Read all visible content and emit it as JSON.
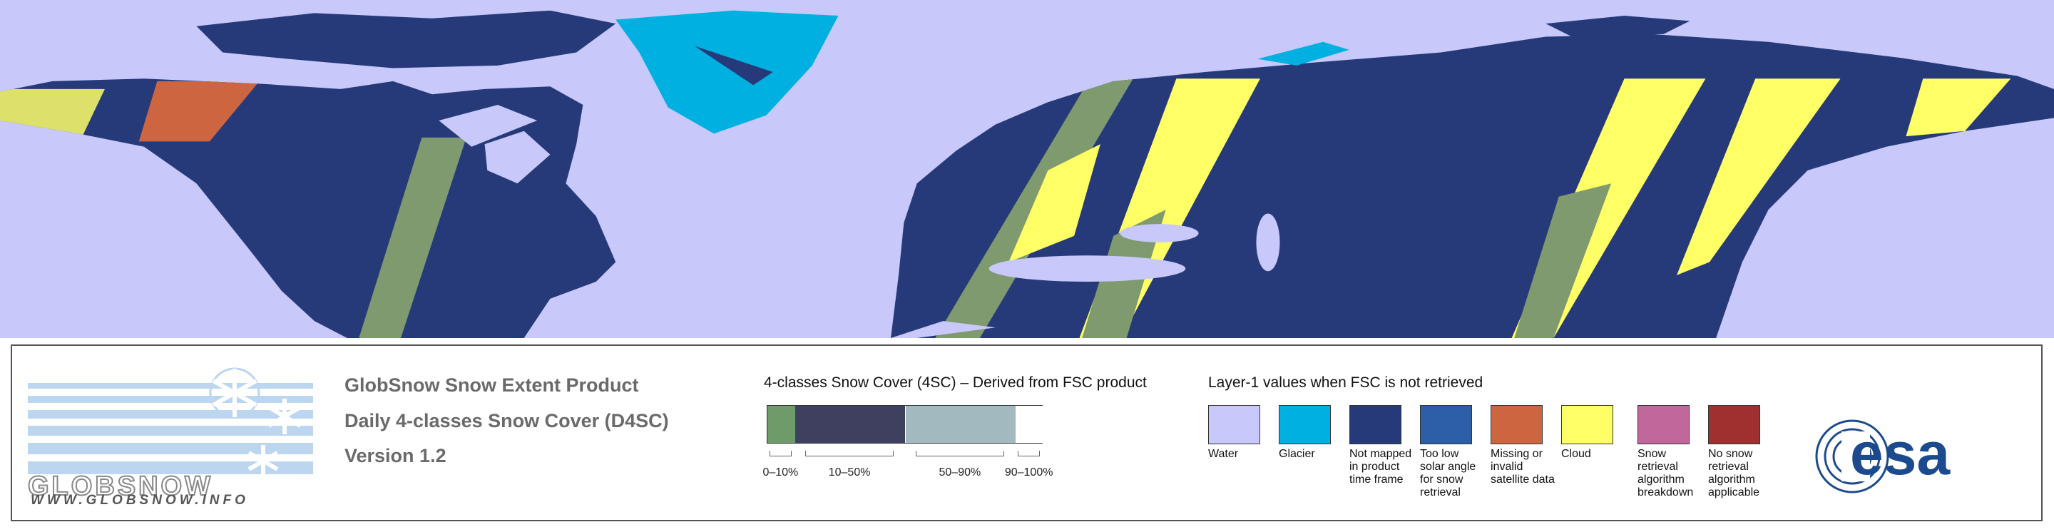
{
  "logo": {
    "name": "GLOBSNOW",
    "url": "WWW.GLOBSNOW.INFO"
  },
  "product": {
    "title": "GlobSnow Snow Extent Product",
    "subtitle": "Daily 4-classes Snow Cover (D4SC)",
    "version": "Version 1.2"
  },
  "snow_cover_legend": {
    "title": "4-classes Snow Cover (4SC) – Derived from FSC product",
    "classes": [
      {
        "label": "0–10%",
        "color": "#6f9a6a"
      },
      {
        "label": "10–50%",
        "color": "#3f3f5f"
      },
      {
        "label": "50–90%",
        "color": "#a2b9bf"
      },
      {
        "label": "90–100%",
        "color": "#ffffff"
      }
    ]
  },
  "layer1_legend": {
    "title": "Layer-1 values when FSC is not retrieved",
    "classes": [
      {
        "label": "Water",
        "color": "#c8c8fa"
      },
      {
        "label": "Glacier",
        "color": "#00b0e0"
      },
      {
        "label": "Not mapped in product time frame",
        "color": "#263a7a"
      },
      {
        "label": "Too low solar angle for snow retrieval",
        "color": "#2b5fa8"
      },
      {
        "label": "Missing or invalid satellite data",
        "color": "#cd6640"
      },
      {
        "label": "Cloud",
        "color": "#ffff66"
      },
      {
        "label": "Snow retrieval algorithm breakdown",
        "color": "#c0689c"
      },
      {
        "label": "No snow retrieval algorithm applicable",
        "color": "#a03030"
      }
    ]
  },
  "esa_logo": "esa"
}
